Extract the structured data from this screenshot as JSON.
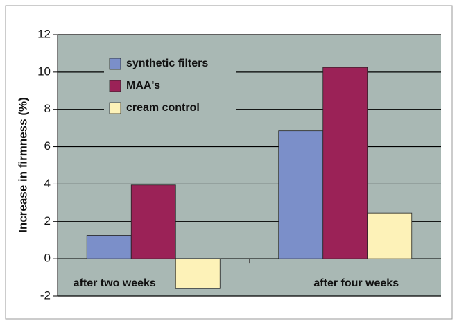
{
  "chart_data": {
    "type": "bar",
    "y_label": "Increase in firmness (%)",
    "categories": [
      "after two weeks",
      "after four weeks"
    ],
    "series": [
      {
        "name": "synthetic filters",
        "color": "#7b8fc9",
        "values": [
          1.25,
          6.85
        ]
      },
      {
        "name": "MAA's",
        "color": "#9b2257",
        "values": [
          3.95,
          10.25
        ]
      },
      {
        "name": "cream control",
        "color": "#fdf2b8",
        "values": [
          -1.6,
          2.45
        ]
      }
    ],
    "ylim": [
      -2,
      12
    ],
    "yticks": [
      -2,
      0,
      2,
      4,
      6,
      8,
      10,
      12
    ],
    "grid": true,
    "plot_background": "#a9b8b4",
    "legend": "upper left"
  }
}
